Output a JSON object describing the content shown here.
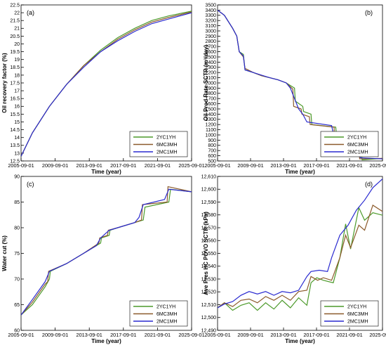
{
  "colors": {
    "2YC1YH": "#4c9a2a",
    "6MC3MH": "#8b5a2b",
    "2MC1MH": "#2a2ad0"
  },
  "chart_data": [
    {
      "type": "line",
      "panel_label": "(a)",
      "xlabel": "Time (year)",
      "ylabel": "Oil recovery factor (%)",
      "x_ticks": [
        "2005-09-01",
        "2009-09-01",
        "2013-09-01",
        "2017-09-01",
        "2021-09-01",
        "2025-09-01"
      ],
      "y_ticks": [
        "12.5",
        "13",
        "13.5",
        "14",
        "14.5",
        "15",
        "15.5",
        "16",
        "16.5",
        "17",
        "17.5",
        "18",
        "18.5",
        "19",
        "19.5",
        "20",
        "20.5",
        "21",
        "21.5",
        "22",
        "22.5"
      ],
      "xlim": [
        2005.67,
        2025.67
      ],
      "ylim": [
        12.5,
        22.5
      ],
      "legend": [
        "2YC1YH",
        "6MC3MH",
        "2MC1MH"
      ],
      "series": [
        {
          "name": "2YC1YH",
          "x": [
            2005.67,
            2007.0,
            2009.0,
            2011.0,
            2013.0,
            2015.0,
            2017.0,
            2019.0,
            2021.0,
            2023.0,
            2025.67
          ],
          "y": [
            12.8,
            14.3,
            16.0,
            17.4,
            18.6,
            19.6,
            20.4,
            21.0,
            21.5,
            21.8,
            22.1
          ]
        },
        {
          "name": "6MC3MH",
          "x": [
            2005.67,
            2007.0,
            2009.0,
            2011.0,
            2013.0,
            2015.0,
            2017.0,
            2019.0,
            2021.0,
            2023.0,
            2025.67
          ],
          "y": [
            12.8,
            14.3,
            16.0,
            17.4,
            18.6,
            19.5,
            20.3,
            20.9,
            21.4,
            21.7,
            22.05
          ]
        },
        {
          "name": "2MC1MH",
          "x": [
            2005.67,
            2007.0,
            2009.0,
            2011.0,
            2013.0,
            2015.0,
            2017.0,
            2019.0,
            2021.0,
            2023.0,
            2025.67
          ],
          "y": [
            12.8,
            14.3,
            16.0,
            17.4,
            18.5,
            19.5,
            20.2,
            20.8,
            21.3,
            21.6,
            22.0
          ]
        }
      ]
    },
    {
      "type": "line",
      "panel_label": "(b)",
      "xlabel": "Time (year)",
      "ylabel": "Oil Prod Rate SCTR (m³/day)",
      "x_ticks": [
        "2005-09-01",
        "2009-09-01",
        "2013-09-01",
        "2017-09-01",
        "2021-09-01",
        "2025-09-01"
      ],
      "y_ticks": [
        "500",
        "600",
        "700",
        "800",
        "900",
        "1000",
        "1100",
        "1200",
        "1300",
        "1400",
        "1500",
        "1600",
        "1700",
        "1800",
        "1900",
        "2000",
        "2100",
        "2200",
        "2300",
        "2400",
        "2500",
        "2600",
        "2700",
        "2800",
        "2900",
        "3000",
        "3100",
        "3200",
        "3300",
        "3400",
        "3500"
      ],
      "xlim": [
        2005.67,
        2025.67
      ],
      "ylim": [
        500,
        3500
      ],
      "legend": [
        "2YC1YH",
        "6MC3MH",
        "2MC1MH"
      ],
      "series": [
        {
          "name": "2YC1YH",
          "x": [
            2005.67,
            2006.5,
            2007.5,
            2008.0,
            2008.3,
            2008.8,
            2009.0,
            2010.0,
            2011.0,
            2012.0,
            2013.0,
            2014.0,
            2015.0,
            2015.1,
            2016.0,
            2016.1,
            2017.0,
            2017.1,
            2020.0,
            2020.2,
            2023.0,
            2023.2,
            2025.67
          ],
          "y": [
            3400,
            3300,
            3050,
            2900,
            2600,
            2550,
            2250,
            2200,
            2140,
            2100,
            2060,
            2000,
            1900,
            1650,
            1550,
            1450,
            1400,
            1200,
            1150,
            800,
            750,
            520,
            550
          ]
        },
        {
          "name": "6MC3MH",
          "x": [
            2005.67,
            2006.5,
            2007.5,
            2008.0,
            2008.3,
            2008.8,
            2009.0,
            2010.0,
            2011.0,
            2012.0,
            2013.0,
            2014.0,
            2014.8,
            2014.9,
            2015.8,
            2015.9,
            2016.8,
            2016.9,
            2019.8,
            2019.9,
            2022.8,
            2022.9,
            2025.67
          ],
          "y": [
            3400,
            3300,
            3050,
            2900,
            2600,
            2500,
            2280,
            2200,
            2140,
            2100,
            2060,
            2000,
            1880,
            1550,
            1500,
            1400,
            1350,
            1200,
            1150,
            780,
            740,
            540,
            550
          ]
        },
        {
          "name": "2MC1MH",
          "x": [
            2005.67,
            2006.5,
            2007.5,
            2008.0,
            2008.3,
            2008.8,
            2009.0,
            2010.0,
            2011.0,
            2012.0,
            2013.0,
            2014.0,
            2014.5,
            2015.0,
            2015.5,
            2016.0,
            2016.5,
            2019.5,
            2020.0,
            2022.5,
            2023.0,
            2025.67
          ],
          "y": [
            3400,
            3300,
            3050,
            2900,
            2600,
            2520,
            2250,
            2200,
            2150,
            2100,
            2060,
            2000,
            1900,
            1700,
            1500,
            1400,
            1250,
            1180,
            800,
            740,
            560,
            540
          ]
        }
      ]
    },
    {
      "type": "line",
      "panel_label": "(c)",
      "xlabel": "Time (year)",
      "ylabel": "Water cut (%)",
      "x_ticks": [
        "2005-09-01",
        "2009-09-01",
        "2013-09-01",
        "2017-09-01",
        "2021-09-01",
        "2025-09-01"
      ],
      "y_ticks": [
        "60",
        "65",
        "70",
        "75",
        "80",
        "85",
        "90"
      ],
      "xlim": [
        2005.67,
        2025.67
      ],
      "ylim": [
        60,
        90
      ],
      "legend": [
        "2YC1YH",
        "6MC3MH",
        "2MC1MH"
      ],
      "series": [
        {
          "name": "2YC1YH",
          "x": [
            2005.67,
            2007.0,
            2008.5,
            2009.0,
            2009.1,
            2011.0,
            2013.0,
            2015.0,
            2015.1,
            2016.0,
            2016.1,
            2017.0,
            2019.0,
            2020.0,
            2020.2,
            2023.0,
            2023.2,
            2025.67
          ],
          "y": [
            63,
            65,
            68.5,
            70,
            71.5,
            73,
            75,
            77,
            78,
            78.5,
            79.5,
            80,
            81,
            81.5,
            84,
            85,
            87.5,
            87
          ]
        },
        {
          "name": "6MC3MH",
          "x": [
            2005.67,
            2007.0,
            2008.5,
            2008.8,
            2008.9,
            2011.0,
            2013.0,
            2014.8,
            2014.9,
            2015.8,
            2015.9,
            2017.0,
            2019.0,
            2019.8,
            2019.9,
            2022.8,
            2022.9,
            2025.67
          ],
          "y": [
            63,
            65.5,
            69,
            69.5,
            71.5,
            73,
            75,
            77,
            78,
            78.5,
            79.5,
            80,
            81,
            81.5,
            84.5,
            85,
            88,
            87
          ]
        },
        {
          "name": "2MC1MH",
          "x": [
            2005.67,
            2007.0,
            2008.5,
            2009.0,
            2011.0,
            2013.0,
            2014.5,
            2015.0,
            2016.0,
            2017.0,
            2019.0,
            2019.5,
            2020.0,
            2022.5,
            2023.0,
            2025.67
          ],
          "y": [
            63,
            66,
            69.5,
            71.5,
            73,
            75,
            76.5,
            78,
            79.5,
            80,
            81,
            82,
            84.5,
            85.5,
            87.5,
            87
          ]
        }
      ]
    },
    {
      "type": "line",
      "panel_label": "(d)",
      "xlabel": "Time (year)",
      "ylabel": "Ave Pres HC POVO SCTR (kPa)",
      "x_ticks": [
        "2005-09-01",
        "2009-09-01",
        "2013-09-01",
        "2017-09-01",
        "2021-09-01",
        "2025-09-01"
      ],
      "y_ticks": [
        "12,490",
        "12,500",
        "12,510",
        "12,520",
        "12,530",
        "12,540",
        "12,550",
        "12,560",
        "12,570",
        "12,580",
        "12,590",
        "12,600",
        "12,610"
      ],
      "xlim": [
        2005.67,
        2025.67
      ],
      "ylim": [
        12490,
        12613
      ],
      "legend": [
        "2YC1YH",
        "6MC3MH",
        "2MC1MH"
      ],
      "series": [
        {
          "name": "2YC1YH",
          "x": [
            2005.67,
            2006.5,
            2007.5,
            2008.5,
            2009.5,
            2010.5,
            2011.5,
            2012.5,
            2013.5,
            2014.5,
            2015.5,
            2016.5,
            2017.0,
            2017.7,
            2018.5,
            2019.7,
            2020.5,
            2021.2,
            2021.8,
            2022.8,
            2023.5,
            2024.5,
            2025.67
          ],
          "y": [
            12508,
            12512,
            12506,
            12510,
            12512,
            12506,
            12512,
            12507,
            12514,
            12508,
            12516,
            12510,
            12528,
            12532,
            12530,
            12528,
            12548,
            12575,
            12555,
            12588,
            12578,
            12584,
            12582
          ]
        },
        {
          "name": "6MC3MH",
          "x": [
            2005.67,
            2006.5,
            2007.5,
            2008.5,
            2009.5,
            2010.5,
            2011.5,
            2012.5,
            2013.5,
            2014.5,
            2015.5,
            2016.5,
            2017.0,
            2017.8,
            2018.5,
            2019.5,
            2020.5,
            2021.2,
            2021.8,
            2022.8,
            2023.5,
            2024.5,
            2025.67
          ],
          "y": [
            12508,
            12512,
            12509,
            12514,
            12515,
            12512,
            12517,
            12514,
            12518,
            12514,
            12521,
            12522,
            12533,
            12530,
            12532,
            12530,
            12548,
            12566,
            12556,
            12574,
            12570,
            12590,
            12585
          ]
        },
        {
          "name": "2MC1MH",
          "x": [
            2005.67,
            2006.5,
            2007.5,
            2008.5,
            2009.5,
            2010.5,
            2011.5,
            2012.5,
            2013.5,
            2014.5,
            2015.5,
            2016.5,
            2017.0,
            2018.0,
            2019.0,
            2019.5,
            2020.5,
            2021.5,
            2022.5,
            2023.5,
            2024.5,
            2025.67
          ],
          "y": [
            12508,
            12511,
            12513,
            12518,
            12521,
            12519,
            12521,
            12518,
            12521,
            12520,
            12522,
            12533,
            12537,
            12538,
            12537,
            12548,
            12566,
            12574,
            12586,
            12594,
            12604,
            12611
          ]
        }
      ]
    }
  ]
}
